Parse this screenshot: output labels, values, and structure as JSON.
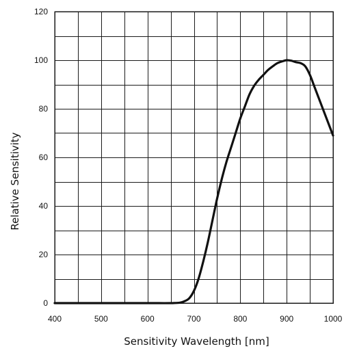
{
  "chart_data": {
    "type": "line",
    "title": "",
    "xlabel": "Sensitivity Wavelength [nm]",
    "ylabel": "Relative Sensitivity",
    "xlim": [
      400,
      1000
    ],
    "ylim": [
      0,
      120
    ],
    "x_ticks": [
      400,
      500,
      600,
      700,
      800,
      900,
      1000
    ],
    "y_ticks": [
      0,
      20,
      40,
      60,
      80,
      100,
      120
    ],
    "x_grid_step": 50,
    "y_grid_step": 10,
    "grid": true,
    "colors": {
      "line": "#111111",
      "grid": "#1a1a1a",
      "background": "#ffffff"
    },
    "series": [
      {
        "x": [
          400,
          500,
          600,
          650,
          670,
          680,
          690,
          700,
          710,
          720,
          730,
          740,
          750,
          760,
          770,
          780,
          790,
          800,
          810,
          820,
          830,
          840,
          850,
          860,
          870,
          880,
          890,
          900,
          910,
          920,
          930,
          940,
          950,
          960,
          970,
          980,
          990,
          1000
        ],
        "y": [
          0,
          0,
          0,
          0,
          0.2,
          0.8,
          2,
          5,
          10,
          17,
          25,
          34,
          43,
          51,
          58,
          64,
          70,
          76,
          81,
          86,
          89.5,
          92,
          94,
          96,
          97.5,
          98.8,
          99.5,
          100,
          99.8,
          99.2,
          98.8,
          97.5,
          94,
          89,
          84,
          79,
          74,
          69
        ]
      }
    ]
  }
}
